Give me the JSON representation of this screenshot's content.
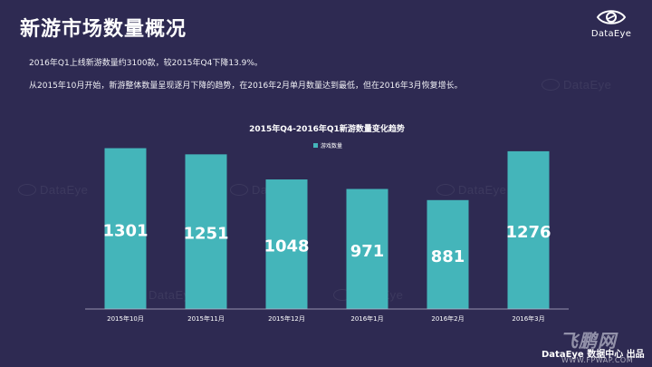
{
  "page": {
    "title": "新游市场数量概况",
    "description_1": "2016年Q1上线新游数量约3100款，较2015年Q4下降13.9%。",
    "description_2": "从2015年10月开始，新游整体数量呈现逐月下降的趋势，在2016年2月单月数量达到最低，但在2016年3月恢复增长。"
  },
  "brand": {
    "name": "DataEye",
    "icon": "eye-logo-icon"
  },
  "watermark": {
    "text": "DataEye"
  },
  "footer": {
    "credit": "DataEye 数据中心 出品",
    "site_logo": "飞鹏网",
    "site_url": "WWW.FPWAP.COM"
  },
  "colors": {
    "background": "#2e2a52",
    "bar": "#44b5ba",
    "legend_swatch": "#44b5ba"
  },
  "chart_data": {
    "type": "bar",
    "title": "2015年Q4-2016年Q1新游数量变化趋势",
    "categories": [
      "2015年10月",
      "2015年11月",
      "2015年12月",
      "2016年1月",
      "2016年2月",
      "2016年3月"
    ],
    "series": [
      {
        "name": "游戏数量",
        "values": [
          1301,
          1251,
          1048,
          971,
          881,
          1276
        ]
      }
    ],
    "legend_position": "top-center",
    "grid": false,
    "ylim": [
      0,
      1400
    ]
  }
}
